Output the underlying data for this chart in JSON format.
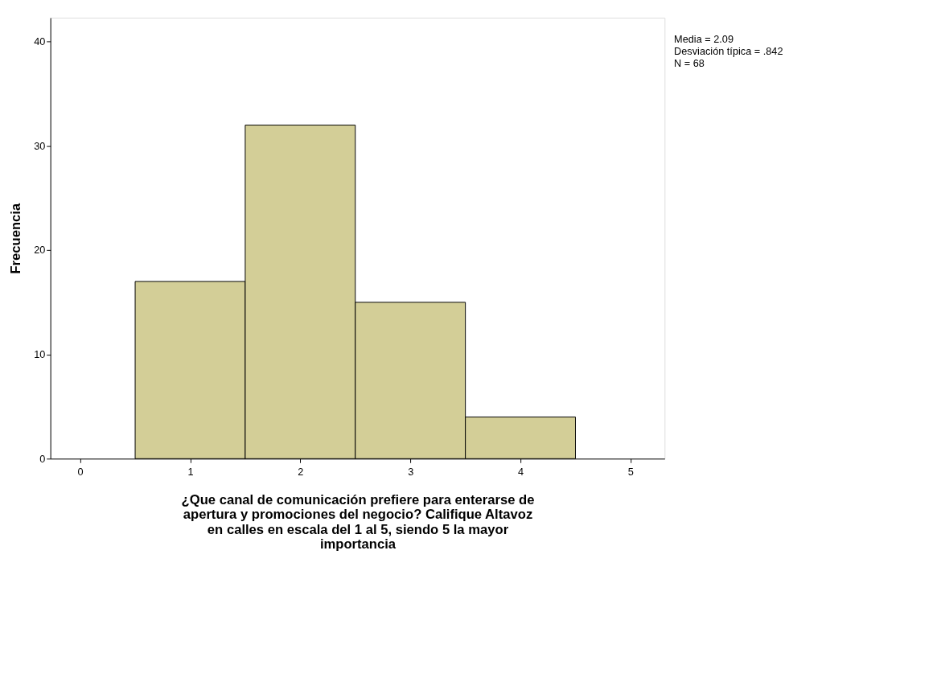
{
  "chart_data": {
    "type": "histogram",
    "bins": [
      0.5,
      1.5,
      2.5,
      3.5,
      4.5
    ],
    "values": [
      17,
      32,
      15,
      4
    ],
    "color": "#d3ce97",
    "xlabel": "¿Que canal de comunicación prefiere para enterarse de apertura y promociones del negocio? Califique Altavoz en calles en escala del 1 al 5, siendo 5 la mayor importancia",
    "ylabel": "Frecuencia",
    "xlim": [
      -0.27,
      5.31
    ],
    "xticks": [
      0,
      1,
      2,
      3,
      4,
      5
    ],
    "ylim": [
      0,
      42.3
    ],
    "yticks": [
      0,
      10,
      20,
      30,
      40
    ],
    "grid": false,
    "annotations": [
      "Media = 2.09",
      "Desviación típica = .842",
      "N = 68"
    ]
  }
}
